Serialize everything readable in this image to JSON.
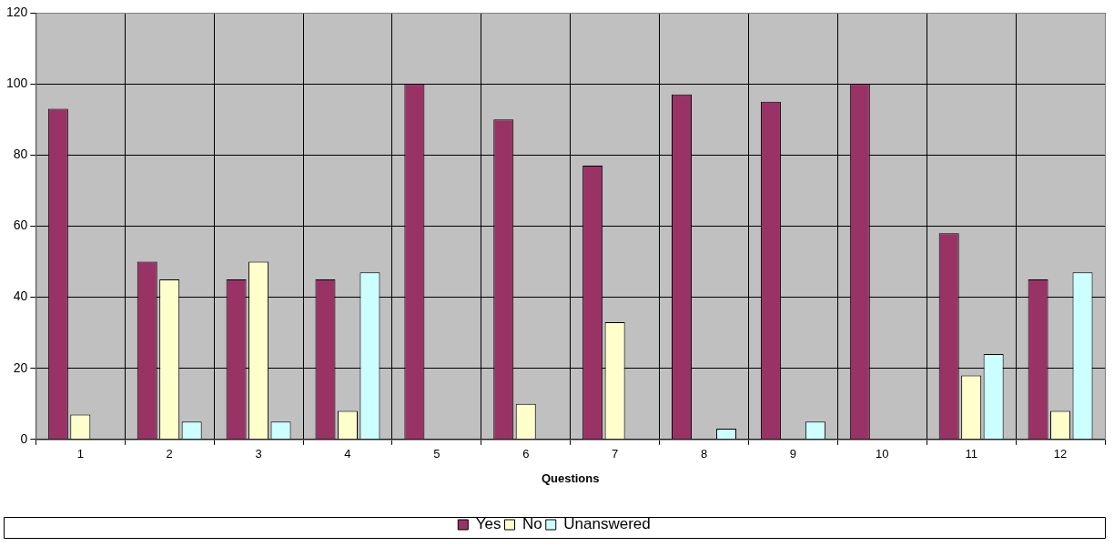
{
  "chart_data": {
    "type": "bar",
    "xlabel": "Questions",
    "categories": [
      "1",
      "2",
      "3",
      "4",
      "5",
      "6",
      "7",
      "8",
      "9",
      "10",
      "11",
      "12"
    ],
    "series": [
      {
        "name": "Yes",
        "color": "#993366",
        "values": [
          93,
          50,
          45,
          45,
          100,
          90,
          77,
          97,
          95,
          100,
          58,
          45
        ]
      },
      {
        "name": "No",
        "color": "#ffffcc",
        "values": [
          7,
          45,
          50,
          8,
          null,
          10,
          33,
          null,
          null,
          null,
          18,
          8
        ]
      },
      {
        "name": "Unanswered",
        "color": "#ccffff",
        "values": [
          null,
          5,
          5,
          47,
          null,
          null,
          null,
          3,
          5,
          null,
          24,
          47
        ]
      }
    ],
    "ylim": [
      0,
      120
    ],
    "yticks": [
      0,
      20,
      40,
      60,
      80,
      100,
      120
    ],
    "grid": true,
    "legend": "bottom"
  }
}
